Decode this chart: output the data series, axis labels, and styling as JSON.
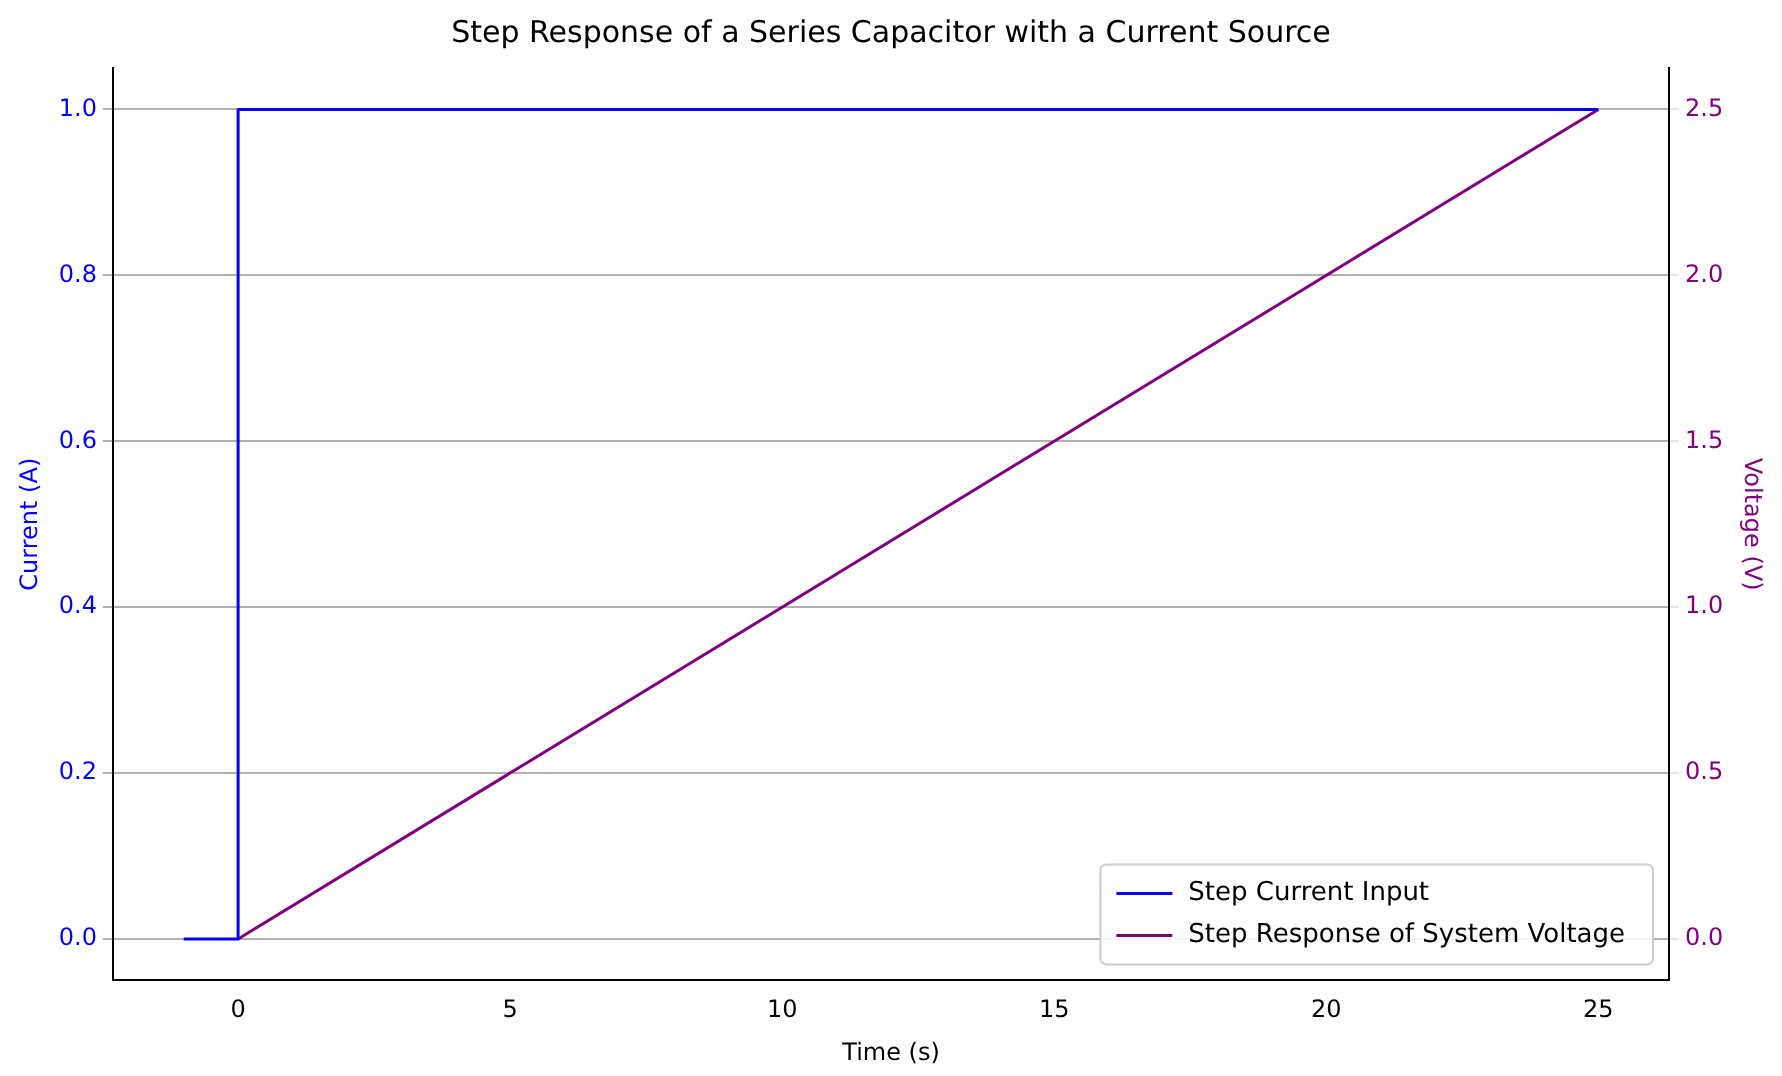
{
  "chart_data": {
    "type": "line",
    "title": "Step Response of a Series Capacitor with a Current Source",
    "xlabel": "Time (s)",
    "ylabel": "Current (A)",
    "y2label": "Voltage (V)",
    "series": [
      {
        "name": "Step Current Input",
        "color": "#0000ff",
        "x": [
          -1,
          0,
          0,
          25
        ],
        "values": [
          0,
          0,
          1,
          1
        ]
      },
      {
        "name": "Step Response of System Voltage",
        "color": "#800080",
        "x": [
          0,
          25
        ],
        "values": [
          0,
          2.5
        ],
        "axis": "y2"
      }
    ],
    "xlim": [
      -2.3,
      26.3
    ],
    "xticks": [
      0,
      5,
      10,
      15,
      20,
      25
    ],
    "ylim": [
      -0.05,
      1.05
    ],
    "yticks": [
      {
        "value": 0,
        "label": "0.0"
      },
      0.2,
      0.4,
      0.6,
      0.8,
      {
        "value": 1,
        "label": "1.0"
      }
    ],
    "y2lim": [
      -0.125,
      2.625
    ],
    "y2ticks": [
      {
        "value": 0,
        "label": "0.0"
      },
      0.5,
      {
        "value": 1,
        "label": "1.0"
      },
      1.5,
      {
        "value": 2,
        "label": "2.0"
      },
      2.5
    ],
    "grid": "y",
    "legend": "bottom right",
    "marker": "none",
    "line_style": "solid"
  }
}
